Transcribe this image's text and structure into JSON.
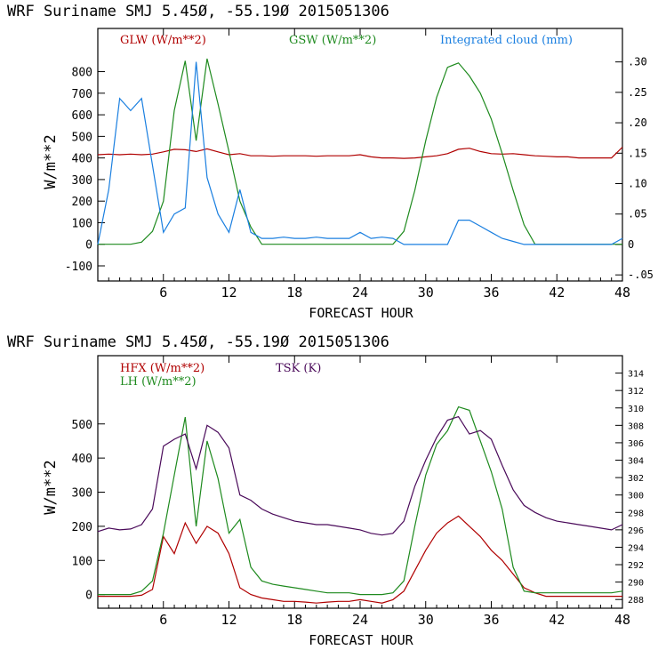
{
  "colors": {
    "red": "#b00000",
    "green": "#1e8a1e",
    "blue": "#1a7fe0",
    "purple": "#4a0a5a",
    "axis": "#000000"
  },
  "chart_data": [
    {
      "type": "line",
      "title": "WRF   Suriname SMJ   5.45Ø, -55.19Ø  2015051306",
      "xlabel": "FORECAST HOUR",
      "ylabel": "W/m**2",
      "xlim": [
        0,
        48
      ],
      "ylim_left": [
        -170,
        1000
      ],
      "ylim_right": [
        -0.06,
        0.355
      ],
      "x_ticks": [
        "6",
        "12",
        "18",
        "24",
        "30",
        "36",
        "42",
        "48"
      ],
      "y_ticks_left": [
        "-100",
        "0",
        "100",
        "200",
        "300",
        "400",
        "500",
        "600",
        "700",
        "800"
      ],
      "y_ticks_right": [
        "-.05",
        "0",
        ".05",
        ".10",
        ".15",
        ".20",
        ".25",
        ".30"
      ],
      "legend": [
        "GLW (W/m**2)",
        "GSW (W/m**2)",
        "Integrated cloud (mm)"
      ],
      "series": [
        {
          "name": "GLW (W/m**2)",
          "axis": "left",
          "color": "red",
          "x": [
            0,
            1,
            2,
            3,
            4,
            5,
            6,
            7,
            8,
            9,
            10,
            11,
            12,
            13,
            14,
            15,
            16,
            17,
            18,
            19,
            20,
            21,
            22,
            23,
            24,
            25,
            26,
            27,
            28,
            29,
            30,
            31,
            32,
            33,
            34,
            35,
            36,
            37,
            38,
            39,
            40,
            41,
            42,
            43,
            44,
            45,
            46,
            47,
            48
          ],
          "y": [
            415,
            418,
            415,
            418,
            415,
            418,
            428,
            440,
            438,
            430,
            442,
            428,
            415,
            420,
            410,
            410,
            408,
            410,
            410,
            410,
            408,
            410,
            410,
            410,
            415,
            405,
            400,
            400,
            398,
            400,
            405,
            410,
            420,
            440,
            445,
            430,
            420,
            418,
            420,
            415,
            410,
            408,
            405,
            405,
            400,
            400,
            400,
            400,
            450
          ]
        },
        {
          "name": "GSW (W/m**2)",
          "axis": "left",
          "color": "green",
          "x": [
            0,
            1,
            2,
            3,
            4,
            5,
            6,
            7,
            8,
            9,
            10,
            11,
            12,
            13,
            14,
            15,
            16,
            17,
            18,
            19,
            20,
            21,
            22,
            23,
            24,
            25,
            26,
            27,
            28,
            29,
            30,
            31,
            32,
            33,
            34,
            35,
            36,
            37,
            38,
            39,
            40,
            41,
            42,
            43,
            44,
            45,
            46,
            47,
            48
          ],
          "y": [
            0,
            0,
            0,
            0,
            10,
            60,
            200,
            620,
            850,
            480,
            860,
            650,
            430,
            200,
            80,
            0,
            0,
            0,
            0,
            0,
            0,
            0,
            0,
            0,
            0,
            0,
            0,
            0,
            60,
            250,
            480,
            680,
            820,
            840,
            780,
            700,
            580,
            420,
            250,
            90,
            0,
            0,
            0,
            0,
            0,
            0,
            0,
            0,
            0
          ]
        },
        {
          "name": "Integrated cloud (mm)",
          "axis": "right",
          "color": "blue",
          "x": [
            0,
            1,
            2,
            3,
            4,
            5,
            6,
            7,
            8,
            9,
            10,
            11,
            12,
            13,
            14,
            15,
            16,
            17,
            18,
            19,
            20,
            21,
            22,
            23,
            24,
            25,
            26,
            27,
            28,
            29,
            30,
            31,
            32,
            33,
            34,
            35,
            36,
            37,
            38,
            39,
            40,
            41,
            42,
            43,
            44,
            45,
            46,
            47,
            48
          ],
          "y": [
            0,
            0.09,
            0.24,
            0.22,
            0.24,
            0.13,
            0.02,
            0.05,
            0.06,
            0.3,
            0.11,
            0.05,
            0.02,
            0.09,
            0.02,
            0.01,
            0.01,
            0.012,
            0.01,
            0.01,
            0.012,
            0.01,
            0.01,
            0.01,
            0.02,
            0.01,
            0.012,
            0.01,
            0,
            0,
            0,
            0,
            0,
            0.04,
            0.04,
            0.03,
            0.02,
            0.01,
            0.005,
            0,
            0,
            0,
            0,
            0,
            0,
            0,
            0,
            0,
            0.01
          ]
        }
      ]
    },
    {
      "type": "line",
      "title": "WRF   Suriname SMJ   5.45Ø, -55.19Ø  2015051306",
      "xlabel": "FORECAST HOUR",
      "ylabel": "W/m**2",
      "xlim": [
        0,
        48
      ],
      "ylim_left": [
        -40,
        700
      ],
      "ylim_right": [
        287,
        316
      ],
      "x_ticks": [
        "6",
        "12",
        "18",
        "24",
        "30",
        "36",
        "42",
        "48"
      ],
      "y_ticks_left": [
        "0",
        "100",
        "200",
        "300",
        "400",
        "500"
      ],
      "y_ticks_right": [
        "288",
        "290",
        "292",
        "294",
        "296",
        "298",
        "300",
        "302",
        "304",
        "306",
        "308",
        "310",
        "312",
        "314"
      ],
      "legend": [
        "HFX (W/m**2)",
        "LH  (W/m**2)",
        "TSK (K)"
      ],
      "series": [
        {
          "name": "HFX (W/m**2)",
          "axis": "left",
          "color": "red",
          "x": [
            0,
            1,
            2,
            3,
            4,
            5,
            6,
            7,
            8,
            9,
            10,
            11,
            12,
            13,
            14,
            15,
            16,
            17,
            18,
            19,
            20,
            21,
            22,
            23,
            24,
            25,
            26,
            27,
            28,
            29,
            30,
            31,
            32,
            33,
            34,
            35,
            36,
            37,
            38,
            39,
            40,
            41,
            42,
            43,
            44,
            45,
            46,
            47,
            48
          ],
          "y": [
            -5,
            -5,
            -5,
            -5,
            -2,
            15,
            170,
            120,
            210,
            150,
            200,
            180,
            120,
            20,
            0,
            -10,
            -15,
            -20,
            -20,
            -22,
            -25,
            -22,
            -20,
            -20,
            -15,
            -20,
            -25,
            -15,
            10,
            70,
            130,
            180,
            210,
            230,
            200,
            170,
            130,
            100,
            60,
            20,
            5,
            -5,
            -5,
            -5,
            -5,
            -5,
            -5,
            -5,
            -5
          ]
        },
        {
          "name": "LH  (W/m**2)",
          "axis": "left",
          "color": "green",
          "x": [
            0,
            1,
            2,
            3,
            4,
            5,
            6,
            7,
            8,
            9,
            10,
            11,
            12,
            13,
            14,
            15,
            16,
            17,
            18,
            19,
            20,
            21,
            22,
            23,
            24,
            25,
            26,
            27,
            28,
            29,
            30,
            31,
            32,
            33,
            34,
            35,
            36,
            37,
            38,
            39,
            40,
            41,
            42,
            43,
            44,
            45,
            46,
            47,
            48
          ],
          "y": [
            0,
            0,
            0,
            0,
            10,
            40,
            180,
            350,
            520,
            200,
            450,
            340,
            180,
            220,
            80,
            40,
            30,
            25,
            20,
            15,
            10,
            5,
            5,
            5,
            0,
            0,
            0,
            5,
            40,
            200,
            350,
            440,
            480,
            550,
            540,
            450,
            360,
            250,
            80,
            10,
            5,
            5,
            5,
            5,
            5,
            5,
            5,
            5,
            10
          ]
        },
        {
          "name": "TSK (K)",
          "axis": "right",
          "color": "purple",
          "x": [
            0,
            1,
            2,
            3,
            4,
            5,
            6,
            7,
            8,
            9,
            10,
            11,
            12,
            13,
            14,
            15,
            16,
            17,
            18,
            19,
            20,
            21,
            22,
            23,
            24,
            25,
            26,
            27,
            28,
            29,
            30,
            31,
            32,
            33,
            34,
            35,
            36,
            37,
            38,
            39,
            40,
            41,
            42,
            43,
            44,
            45,
            46,
            47,
            48
          ],
          "y": [
            295.8,
            296.2,
            296.0,
            296.1,
            296.6,
            298.4,
            305.6,
            306.4,
            307.0,
            303.0,
            308.0,
            307.2,
            305.4,
            300.0,
            299.4,
            298.4,
            297.8,
            297.4,
            297.0,
            296.8,
            296.6,
            296.6,
            296.4,
            296.2,
            296.0,
            295.6,
            295.4,
            295.6,
            297.0,
            301.0,
            304.0,
            306.6,
            308.6,
            309.0,
            307.0,
            307.4,
            306.4,
            303.4,
            300.6,
            298.8,
            298.0,
            297.4,
            297.0,
            296.8,
            296.6,
            296.4,
            296.2,
            296.0,
            296.6
          ]
        }
      ]
    }
  ]
}
